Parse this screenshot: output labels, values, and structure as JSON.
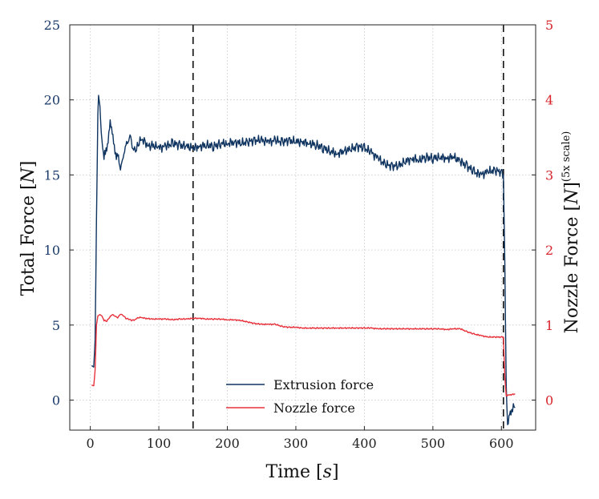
{
  "chart_data": {
    "type": "line",
    "xlabel_text": "Time",
    "xlabel_unit": "s",
    "ylabel_left_text": "Total Force",
    "ylabel_left_unit": "N",
    "ylabel_right_text": "Nozzle Force",
    "ylabel_right_unit": "N",
    "ylabel_right_superscript": "(5x scale)",
    "xlim": [
      -30,
      650
    ],
    "ylim_left": [
      -2,
      25
    ],
    "ylim_right": [
      -0.4,
      5
    ],
    "xticks": [
      "0",
      "100",
      "200",
      "300",
      "400",
      "500",
      "600"
    ],
    "yticks_left": [
      "0",
      "5",
      "10",
      "15",
      "20",
      "25"
    ],
    "yticks_right": [
      "0",
      "1",
      "2",
      "3",
      "4",
      "5"
    ],
    "vlines": [
      150,
      603
    ],
    "grid": true,
    "legend_position": "lower-center",
    "colors": {
      "left_axis": "#1a3a6b",
      "right_axis": "#d8232a",
      "extrusion": "#0f3460",
      "nozzle": "#e8323c"
    },
    "series": [
      {
        "name": "Extrusion force",
        "axis": "left",
        "points": [
          [
            2,
            2.3
          ],
          [
            5,
            2.2
          ],
          [
            7,
            4
          ],
          [
            9,
            12
          ],
          [
            11,
            19
          ],
          [
            12,
            20.3
          ],
          [
            14,
            19.6
          ],
          [
            16,
            17.8
          ],
          [
            18,
            16.8
          ],
          [
            20,
            16.2
          ],
          [
            23,
            16.5
          ],
          [
            26,
            17.4
          ],
          [
            29,
            18.5
          ],
          [
            32,
            17.8
          ],
          [
            35,
            16.9
          ],
          [
            38,
            16.3
          ],
          [
            41,
            16.0
          ],
          [
            44,
            15.6
          ],
          [
            47,
            15.9
          ],
          [
            50,
            16.6
          ],
          [
            53,
            17.1
          ],
          [
            56,
            17.5
          ],
          [
            59,
            17.3
          ],
          [
            62,
            16.9
          ],
          [
            66,
            16.7
          ],
          [
            70,
            17.1
          ],
          [
            75,
            17.4
          ],
          [
            80,
            17.2
          ],
          [
            85,
            16.9
          ],
          [
            90,
            17.0
          ],
          [
            100,
            16.8
          ],
          [
            110,
            16.9
          ],
          [
            120,
            17.1
          ],
          [
            130,
            17.0
          ],
          [
            140,
            16.9
          ],
          [
            150,
            16.8
          ],
          [
            160,
            16.9
          ],
          [
            170,
            17.0
          ],
          [
            180,
            16.9
          ],
          [
            190,
            17.1
          ],
          [
            200,
            17.1
          ],
          [
            210,
            17.2
          ],
          [
            220,
            17.1
          ],
          [
            230,
            17.2
          ],
          [
            240,
            17.3
          ],
          [
            250,
            17.3
          ],
          [
            260,
            17.2
          ],
          [
            270,
            17.3
          ],
          [
            280,
            17.2
          ],
          [
            290,
            17.3
          ],
          [
            300,
            17.2
          ],
          [
            310,
            17.2
          ],
          [
            320,
            17.1
          ],
          [
            330,
            17.0
          ],
          [
            340,
            16.8
          ],
          [
            350,
            16.6
          ],
          [
            360,
            16.4
          ],
          [
            370,
            16.6
          ],
          [
            380,
            16.7
          ],
          [
            390,
            16.9
          ],
          [
            400,
            16.8
          ],
          [
            410,
            16.5
          ],
          [
            420,
            16.1
          ],
          [
            430,
            15.7
          ],
          [
            440,
            15.6
          ],
          [
            450,
            15.6
          ],
          [
            460,
            15.9
          ],
          [
            470,
            16.1
          ],
          [
            480,
            16.0
          ],
          [
            490,
            16.2
          ],
          [
            500,
            16.1
          ],
          [
            510,
            16.2
          ],
          [
            520,
            16.1
          ],
          [
            530,
            16.2
          ],
          [
            540,
            15.9
          ],
          [
            550,
            15.6
          ],
          [
            560,
            15.2
          ],
          [
            570,
            15.0
          ],
          [
            580,
            15.2
          ],
          [
            590,
            15.3
          ],
          [
            600,
            15.2
          ],
          [
            603,
            15.0
          ],
          [
            605,
            9
          ],
          [
            607,
            1
          ],
          [
            609,
            -1.8
          ],
          [
            612,
            -0.9
          ],
          [
            615,
            -0.6
          ],
          [
            620,
            -0.5
          ]
        ]
      },
      {
        "name": "Nozzle force",
        "axis": "right",
        "points": [
          [
            2,
            0.2
          ],
          [
            5,
            0.19
          ],
          [
            7,
            0.4
          ],
          [
            9,
            1.0
          ],
          [
            11,
            1.12
          ],
          [
            14,
            1.14
          ],
          [
            17,
            1.12
          ],
          [
            20,
            1.06
          ],
          [
            24,
            1.05
          ],
          [
            28,
            1.1
          ],
          [
            32,
            1.14
          ],
          [
            36,
            1.12
          ],
          [
            40,
            1.1
          ],
          [
            44,
            1.15
          ],
          [
            48,
            1.13
          ],
          [
            52,
            1.09
          ],
          [
            56,
            1.08
          ],
          [
            60,
            1.06
          ],
          [
            65,
            1.07
          ],
          [
            70,
            1.1
          ],
          [
            75,
            1.1
          ],
          [
            80,
            1.09
          ],
          [
            90,
            1.08
          ],
          [
            100,
            1.08
          ],
          [
            110,
            1.08
          ],
          [
            120,
            1.07
          ],
          [
            130,
            1.08
          ],
          [
            140,
            1.08
          ],
          [
            150,
            1.09
          ],
          [
            160,
            1.09
          ],
          [
            170,
            1.08
          ],
          [
            180,
            1.08
          ],
          [
            190,
            1.08
          ],
          [
            200,
            1.07
          ],
          [
            210,
            1.07
          ],
          [
            220,
            1.06
          ],
          [
            230,
            1.04
          ],
          [
            240,
            1.02
          ],
          [
            250,
            1.01
          ],
          [
            260,
            1.01
          ],
          [
            270,
            1.01
          ],
          [
            280,
            0.98
          ],
          [
            290,
            0.97
          ],
          [
            300,
            0.97
          ],
          [
            310,
            0.96
          ],
          [
            320,
            0.96
          ],
          [
            330,
            0.96
          ],
          [
            340,
            0.96
          ],
          [
            350,
            0.96
          ],
          [
            360,
            0.96
          ],
          [
            370,
            0.96
          ],
          [
            380,
            0.96
          ],
          [
            390,
            0.96
          ],
          [
            400,
            0.96
          ],
          [
            410,
            0.96
          ],
          [
            420,
            0.95
          ],
          [
            430,
            0.95
          ],
          [
            440,
            0.95
          ],
          [
            450,
            0.95
          ],
          [
            460,
            0.95
          ],
          [
            470,
            0.95
          ],
          [
            480,
            0.95
          ],
          [
            490,
            0.95
          ],
          [
            500,
            0.95
          ],
          [
            510,
            0.95
          ],
          [
            520,
            0.94
          ],
          [
            530,
            0.95
          ],
          [
            540,
            0.95
          ],
          [
            550,
            0.91
          ],
          [
            560,
            0.88
          ],
          [
            570,
            0.86
          ],
          [
            580,
            0.84
          ],
          [
            590,
            0.84
          ],
          [
            600,
            0.84
          ],
          [
            603,
            0.84
          ],
          [
            605,
            0.3
          ],
          [
            607,
            0.06
          ],
          [
            612,
            0.07
          ],
          [
            620,
            0.08
          ]
        ]
      }
    ]
  }
}
